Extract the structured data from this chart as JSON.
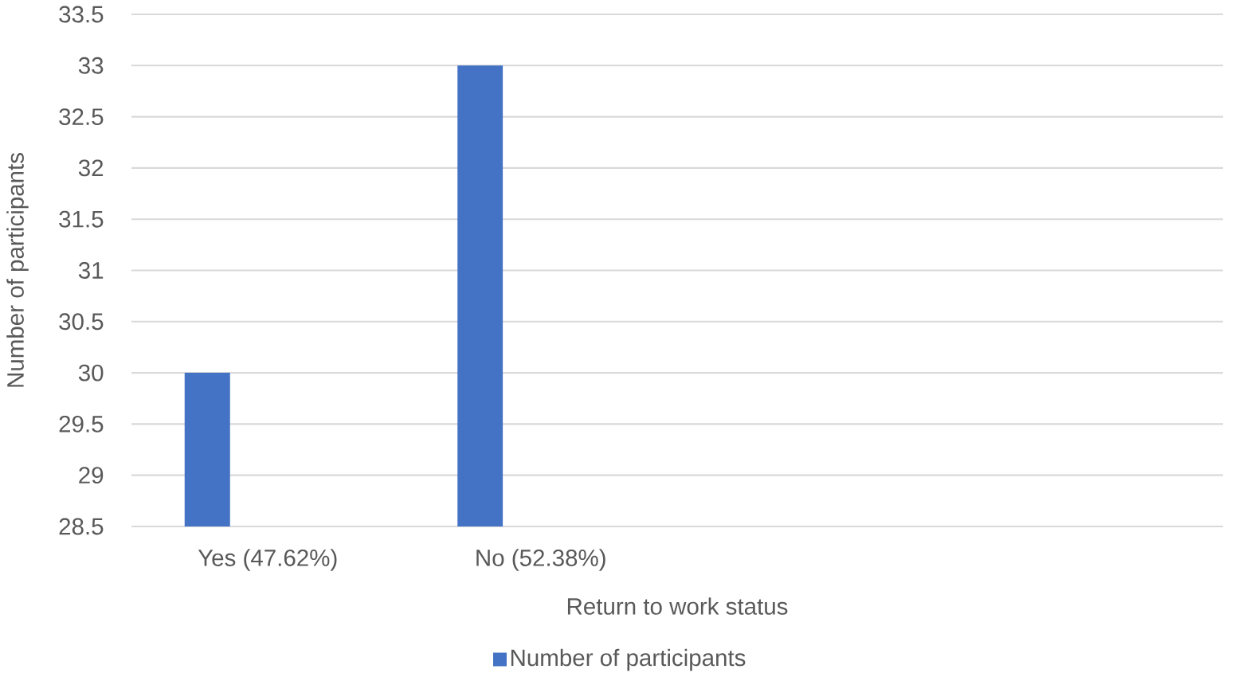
{
  "chart_data": {
    "type": "bar",
    "categories": [
      "Yes (47.62%)",
      "No (52.38%)",
      null,
      null
    ],
    "series": [
      {
        "name": "Number of participants",
        "color": "#4472c4",
        "values": [
          30,
          33,
          null,
          null
        ]
      }
    ],
    "xlabel": "Return to work status",
    "ylabel": "Number of participants",
    "ylim": [
      28.5,
      33.5
    ],
    "yticks": [
      28.5,
      29,
      29.5,
      30,
      30.5,
      31,
      31.5,
      32,
      32.5,
      33,
      33.5
    ],
    "grid": "y",
    "legend": "bottom"
  }
}
